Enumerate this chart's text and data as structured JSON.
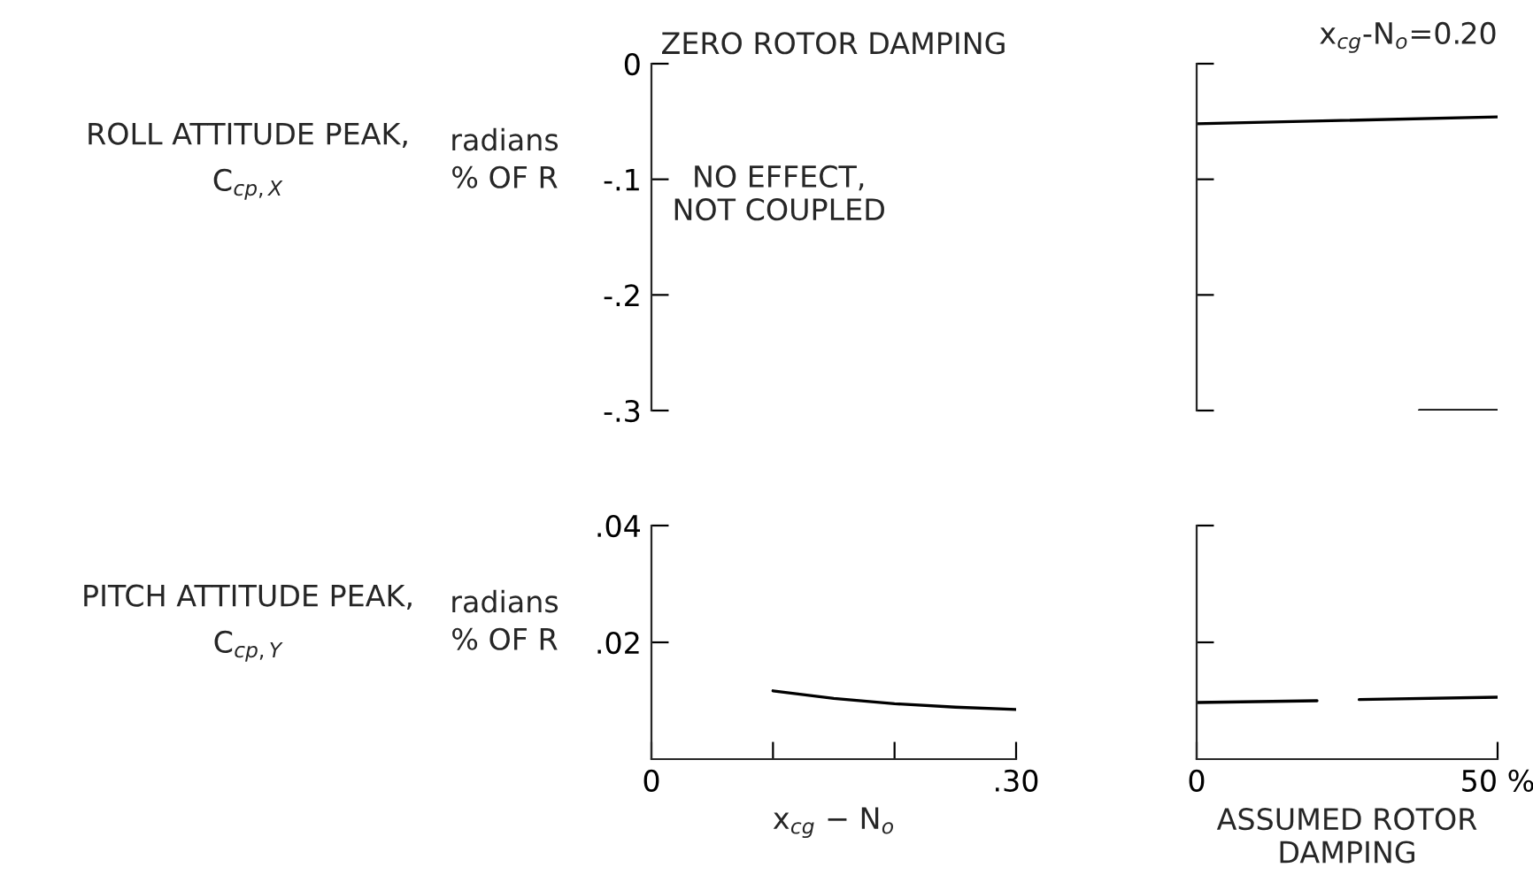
{
  "chart_data": [
    {
      "type": "line",
      "title": "ZERO ROTOR DAMPING",
      "ylabel": "ROLL ATTITUDE PEAK,\nC$_{cp,X}$",
      "annotations": [
        "radians\n% OF R",
        "NO EFFECT,\nNOT COUPLED"
      ],
      "xlim": [
        0,
        0.3
      ],
      "ylim": [
        -0.3,
        0
      ],
      "yticks": [
        0,
        {
          "value": -0.1,
          "label": "-.1"
        },
        {
          "value": -0.2,
          "label": "-.2"
        },
        {
          "value": -0.3,
          "label": "-.3"
        }
      ],
      "tick_labels": "y"
    },
    {
      "type": "line",
      "title": "x$_{cg}$-N$_{o}$=0.20",
      "series": [
        {
          "color": "#000000",
          "x": [
            0,
            50
          ],
          "values": [
            -0.052,
            -0.046
          ]
        },
        {
          "color": "#000000",
          "x": [
            37,
            50
          ],
          "values": [
            -0.3,
            -0.3
          ]
        }
      ],
      "xlim": [
        0,
        50
      ],
      "ylim": [
        -0.3,
        0
      ],
      "yticks": [
        {
          "value": 0,
          "label": null
        },
        {
          "value": -0.1,
          "label": null
        },
        {
          "value": -0.2,
          "label": null
        },
        {
          "value": -0.3,
          "label": null
        }
      ],
      "tick_labels": false
    },
    {
      "type": "line",
      "ylabel": "PITCH ATTITUDE PEAK,\nC$_{cp,Y}$",
      "xlabel": "x$_{cg}$ − N$_{o}$",
      "annotations": [
        "radians\n% OF R"
      ],
      "series": [
        {
          "color": "#000000",
          "x": [
            0.1,
            0.15,
            0.2,
            0.25,
            0.3
          ],
          "values": [
            0.0117,
            0.0104,
            0.0095,
            0.0089,
            0.0085
          ]
        }
      ],
      "xlim": [
        0,
        0.3
      ],
      "xticks": [
        0,
        {
          "value": 0.1,
          "label": null
        },
        {
          "value": 0.2,
          "label": null
        },
        {
          "value": 0.3,
          "label": ".30"
        }
      ],
      "ylim": [
        0,
        0.04
      ],
      "yticks": [
        {
          "value": 0.02,
          "label": ".02"
        },
        {
          "value": 0.04,
          "label": ".04"
        }
      ]
    },
    {
      "type": "line",
      "xlabel": "ASSUMED ROTOR\nDAMPING",
      "series": [
        {
          "color": "#000000",
          "x": [
            0,
            20,
            23,
            27,
            50
          ],
          "values": [
            0.0097,
            0.01,
            null,
            0.0102,
            0.0106
          ]
        }
      ],
      "xlim": [
        0,
        50
      ],
      "xticks": [
        0,
        {
          "value": 50,
          "label": "50 %"
        }
      ],
      "ylim": [
        0,
        0.04
      ],
      "yticks": [
        {
          "value": 0.02,
          "label": null
        },
        {
          "value": 0.04,
          "label": null
        }
      ],
      "tick_labels": "x"
    }
  ]
}
